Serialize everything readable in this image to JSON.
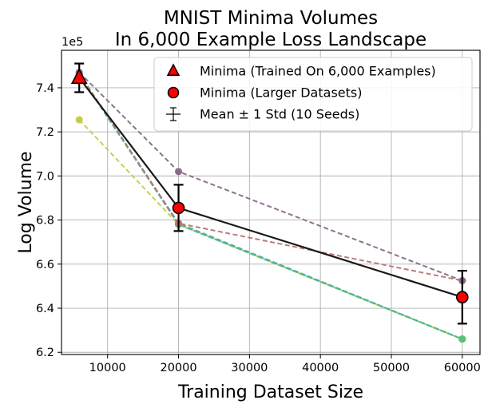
{
  "chart_data": {
    "type": "line",
    "title_lines": [
      "MNIST Minima Volumes",
      "In 6,000 Example Loss Landscape"
    ],
    "xlabel": "Training Dataset Size",
    "ylabel": "Log Volume",
    "y_offset_label": "1e5",
    "y_scale": 100000,
    "xlim": [
      3500,
      62500
    ],
    "ylim": [
      619000,
      757000
    ],
    "xticks": [
      10000,
      20000,
      30000,
      40000,
      50000,
      60000
    ],
    "xtick_labels": [
      "10000",
      "20000",
      "30000",
      "40000",
      "50000",
      "60000"
    ],
    "yticks": [
      620000,
      640000,
      660000,
      680000,
      700000,
      720000,
      740000
    ],
    "ytick_labels": [
      "6.2",
      "6.4",
      "6.6",
      "6.8",
      "7.0",
      "7.2",
      "7.4"
    ],
    "grid": true,
    "legend_position": "top-right",
    "legend": [
      {
        "label": "Minima (Trained On 6,000 Examples)",
        "marker": "triangle"
      },
      {
        "label": "Minima (Larger Datasets)",
        "marker": "circle"
      },
      {
        "label": "Mean ± 1 Std (10 Seeds)",
        "marker": "errorbar"
      }
    ],
    "seed_series": [
      {
        "name": "seed-olive",
        "color": "#c6cc4a",
        "x": [
          6000,
          20000,
          60000
        ],
        "y": [
          725500,
          678000,
          626000
        ]
      },
      {
        "name": "seed-teal",
        "color": "#3fbf9f",
        "x": [
          6000,
          20000,
          60000
        ],
        "y": [
          746000,
          678000,
          626000
        ]
      },
      {
        "name": "seed-blue",
        "color": "#3a9fc6",
        "x": [
          6000,
          20000,
          60000
        ],
        "y": [
          746000,
          678500,
          626000
        ]
      },
      {
        "name": "seed-green",
        "color": "#5cc07a",
        "x": [
          6000,
          20000,
          60000
        ],
        "y": [
          746500,
          678000,
          626000
        ]
      },
      {
        "name": "seed-rose",
        "color": "#b97575",
        "x": [
          6000,
          20000,
          60000
        ],
        "y": [
          746500,
          678500,
          652500
        ]
      },
      {
        "name": "seed-purple",
        "color": "#8a6a8a",
        "x": [
          6000,
          20000,
          60000
        ],
        "y": [
          747000,
          702000,
          652500
        ]
      }
    ],
    "mean": {
      "x": [
        6000,
        20000,
        60000
      ],
      "y": [
        744500,
        685500,
        645000
      ],
      "std": [
        6500,
        10500,
        12000
      ],
      "color": "#1a1a1a",
      "marker_color": "#ff0000"
    }
  }
}
